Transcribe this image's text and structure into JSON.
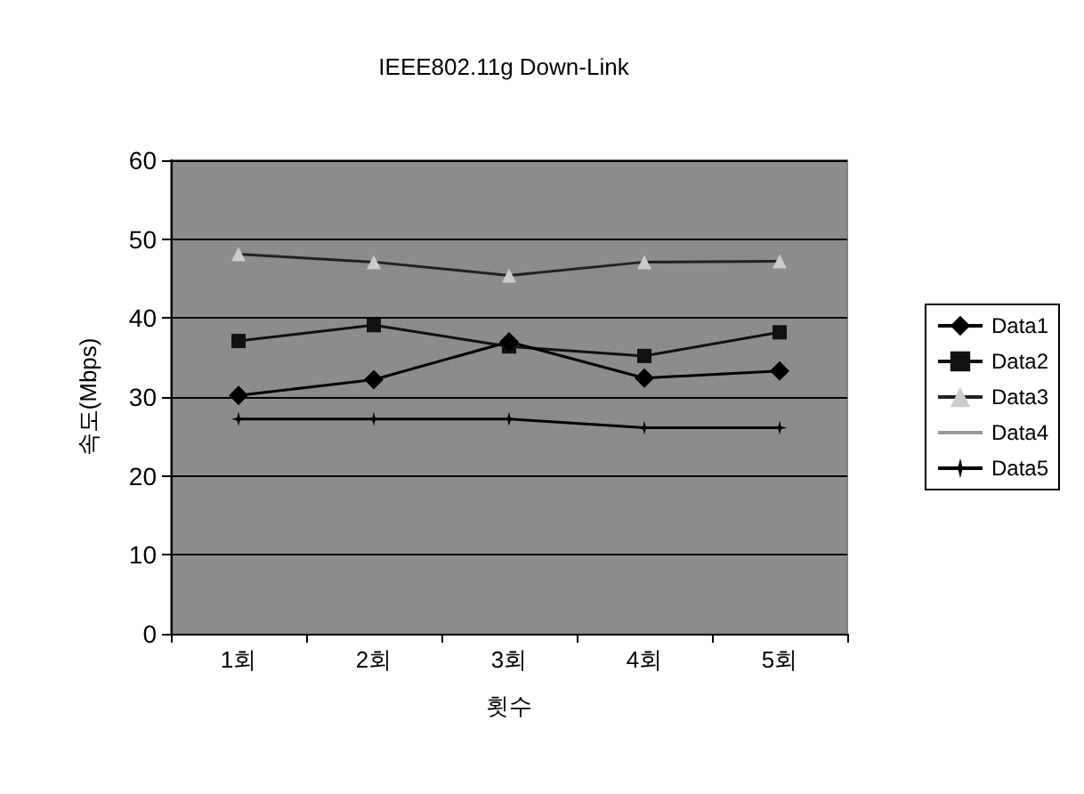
{
  "chart_data": {
    "type": "line",
    "title": "IEEE802.11g Down-Link",
    "xlabel": "횟수",
    "ylabel": "속도(Mbps)",
    "categories": [
      "1회",
      "2회",
      "3회",
      "4회",
      "5회"
    ],
    "ylim": [
      0,
      60
    ],
    "yticks": [
      0,
      10,
      20,
      30,
      40,
      50,
      60
    ],
    "grid": "y",
    "legend": "right",
    "series": [
      {
        "name": "Data1",
        "color": "#000000",
        "marker": "diamond",
        "values": [
          30.2,
          32.2,
          37,
          32.4,
          33.3
        ]
      },
      {
        "name": "Data2",
        "color": "#111111",
        "marker": "square",
        "values": [
          37.1,
          39.1,
          36.4,
          35.2,
          38.2
        ]
      },
      {
        "name": "Data3",
        "color": "#222222",
        "marker": "triangle",
        "values": [
          48.1,
          47.1,
          45.4,
          47.1,
          47.2
        ]
      },
      {
        "name": "Data4",
        "color": "#999999",
        "marker": "cross",
        "values": [
          null,
          null,
          null,
          null,
          null
        ]
      },
      {
        "name": "Data5",
        "color": "#000000",
        "marker": "star",
        "values": [
          27.2,
          27.2,
          27.2,
          26.1,
          26.1
        ]
      }
    ]
  }
}
